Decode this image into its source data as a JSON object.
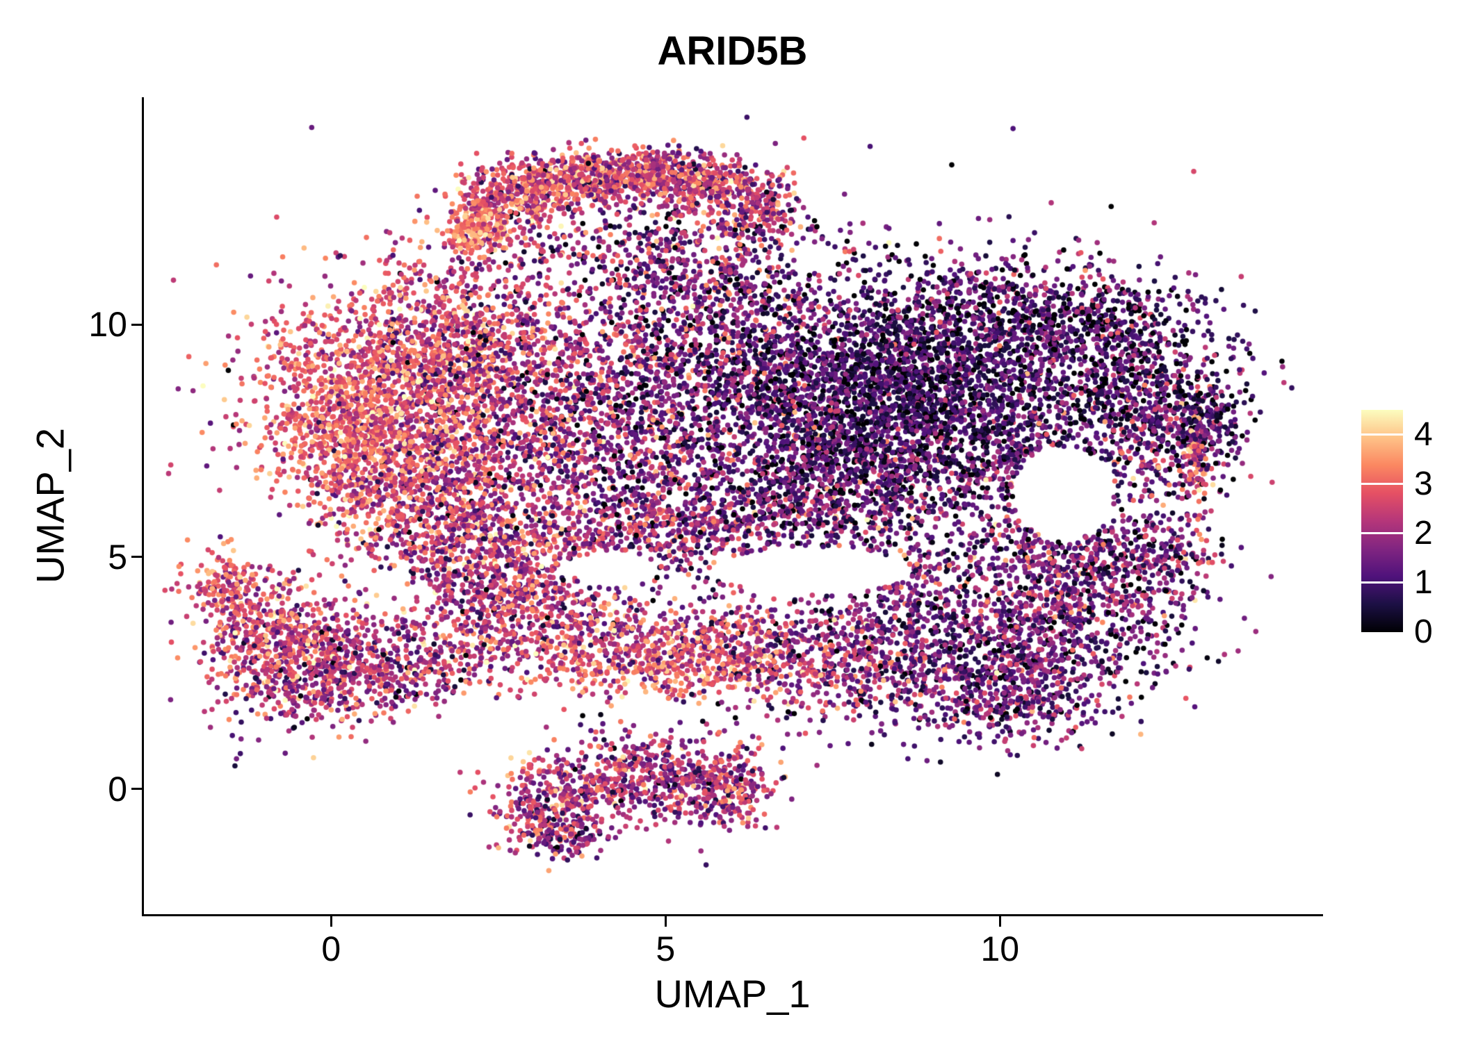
{
  "chart_data": {
    "type": "scatter",
    "title": "ARID5B",
    "xlabel": "UMAP_1",
    "ylabel": "UMAP_2",
    "xlim": [
      -2.8,
      14.8
    ],
    "ylim": [
      -2.7,
      14.9
    ],
    "xticks": [
      0,
      5,
      10
    ],
    "yticks": [
      0,
      5,
      10
    ],
    "grid": false,
    "background": "#ffffff",
    "axis_color": "#000000",
    "legend": {
      "kind": "colorbar",
      "position": "right",
      "ticks": [
        4,
        3,
        2,
        1,
        0
      ],
      "vmin": 0,
      "vmax": 4.5,
      "palette": [
        "#000004",
        "#1c1044",
        "#4f127b",
        "#812581",
        "#b5367a",
        "#e55064",
        "#fb8761",
        "#fec287",
        "#fcfdbf"
      ]
    },
    "point_radius_px": 3.8,
    "seed": 42,
    "clusters_format": "[x_center, y_center, x_sd, y_sd, n_points, expr_mean, expr_sd]",
    "clusters": [
      [
        2.15,
        12.05,
        0.22,
        0.28,
        220,
        3.3,
        0.6
      ],
      [
        2.7,
        12.75,
        0.45,
        0.35,
        300,
        2.7,
        0.8
      ],
      [
        3.6,
        13.15,
        0.55,
        0.28,
        380,
        2.7,
        0.8
      ],
      [
        4.7,
        13.25,
        0.55,
        0.25,
        380,
        2.5,
        0.8
      ],
      [
        5.7,
        13.0,
        0.45,
        0.3,
        250,
        2.3,
        0.9
      ],
      [
        6.4,
        12.55,
        0.3,
        0.35,
        150,
        2.2,
        0.9
      ],
      [
        4.3,
        11.6,
        1.3,
        0.75,
        420,
        1.9,
        1.0
      ],
      [
        6.0,
        11.2,
        0.9,
        0.8,
        300,
        1.5,
        1.0
      ],
      [
        0.75,
        8.6,
        1.05,
        1.15,
        1100,
        2.8,
        0.75
      ],
      [
        0.25,
        7.5,
        0.6,
        0.75,
        450,
        3.1,
        0.65
      ],
      [
        1.8,
        9.6,
        0.95,
        0.85,
        650,
        2.4,
        0.85
      ],
      [
        1.6,
        6.9,
        0.85,
        0.8,
        480,
        2.4,
        0.85
      ],
      [
        0.9,
        5.9,
        0.6,
        0.5,
        220,
        2.2,
        0.9
      ],
      [
        3.2,
        8.2,
        1.15,
        1.35,
        850,
        2.0,
        0.9
      ],
      [
        5.0,
        7.6,
        1.25,
        1.45,
        1000,
        1.6,
        0.95
      ],
      [
        5.8,
        9.8,
        1.0,
        0.8,
        450,
        1.3,
        0.95
      ],
      [
        7.8,
        8.4,
        1.25,
        1.05,
        1600,
        0.85,
        0.7
      ],
      [
        9.2,
        8.9,
        1.0,
        0.95,
        800,
        0.8,
        0.7
      ],
      [
        8.5,
        6.9,
        1.15,
        0.75,
        650,
        1.1,
        0.8
      ],
      [
        7.0,
        6.0,
        0.9,
        0.55,
        350,
        1.4,
        0.9
      ],
      [
        9.9,
        10.4,
        1.2,
        0.65,
        500,
        1.0,
        0.85
      ],
      [
        11.4,
        10.0,
        0.85,
        0.55,
        350,
        0.9,
        0.85
      ],
      [
        11.8,
        8.6,
        0.95,
        0.85,
        650,
        1.1,
        0.9
      ],
      [
        12.5,
        7.4,
        0.45,
        0.75,
        300,
        1.4,
        1.0
      ],
      [
        11.2,
        5.1,
        0.85,
        0.55,
        320,
        1.5,
        0.9
      ],
      [
        12.95,
        7.1,
        0.12,
        0.55,
        100,
        2.9,
        0.8
      ],
      [
        10.4,
        6.9,
        0.45,
        0.8,
        250,
        1.2,
        0.9
      ],
      [
        3.0,
        5.6,
        1.1,
        0.55,
        420,
        2.2,
        0.9
      ],
      [
        5.4,
        5.6,
        0.95,
        0.5,
        280,
        1.8,
        0.9
      ],
      [
        2.75,
        4.45,
        0.5,
        0.45,
        230,
        2.3,
        0.8
      ],
      [
        2.5,
        3.55,
        0.8,
        0.55,
        320,
        2.3,
        0.9
      ],
      [
        4.6,
        3.3,
        1.1,
        0.45,
        380,
        2.4,
        0.85
      ],
      [
        5.0,
        2.55,
        1.1,
        0.33,
        320,
        3.0,
        0.75
      ],
      [
        6.4,
        2.95,
        0.75,
        0.5,
        280,
        2.2,
        0.9
      ],
      [
        7.8,
        2.6,
        0.8,
        0.65,
        330,
        1.8,
        0.9
      ],
      [
        9.6,
        3.0,
        1.05,
        0.85,
        750,
        1.3,
        0.8
      ],
      [
        11.2,
        3.7,
        0.85,
        0.75,
        480,
        1.3,
        0.85
      ],
      [
        10.3,
        1.9,
        0.75,
        0.5,
        280,
        1.5,
        0.9
      ],
      [
        8.6,
        4.6,
        0.55,
        0.5,
        180,
        1.4,
        0.9
      ],
      [
        12.3,
        5.0,
        0.5,
        0.55,
        200,
        1.4,
        0.9
      ],
      [
        -0.9,
        3.4,
        0.55,
        0.6,
        420,
        2.5,
        0.85
      ],
      [
        -0.3,
        2.3,
        0.65,
        0.55,
        420,
        2.2,
        0.9
      ],
      [
        -1.55,
        4.35,
        0.28,
        0.38,
        140,
        2.8,
        0.7
      ],
      [
        0.5,
        2.9,
        0.5,
        0.5,
        230,
        2.0,
        0.9
      ],
      [
        1.5,
        2.55,
        0.55,
        0.4,
        120,
        2.1,
        1.0
      ],
      [
        3.2,
        -0.35,
        0.45,
        0.5,
        280,
        2.2,
        0.9
      ],
      [
        4.3,
        0.3,
        0.55,
        0.5,
        280,
        2.0,
        0.9
      ],
      [
        5.3,
        0.2,
        0.55,
        0.45,
        270,
        2.0,
        0.9
      ],
      [
        6.0,
        -0.05,
        0.33,
        0.45,
        180,
        2.3,
        0.85
      ],
      [
        3.55,
        -1.05,
        0.35,
        0.3,
        110,
        1.9,
        0.9
      ],
      [
        6.5,
        8.0,
        3.3,
        2.4,
        500,
        1.5,
        1.1
      ],
      [
        7.0,
        4.0,
        2.5,
        0.8,
        200,
        1.8,
        1.0
      ],
      [
        1.8,
        4.9,
        0.5,
        0.5,
        150,
        2.2,
        0.9
      ],
      [
        13.1,
        7.9,
        0.25,
        0.4,
        120,
        0.9,
        0.7
      ]
    ],
    "holes_format": "[x_center, y_center, x_radius, y_radius] regions with no cells",
    "holes": [
      [
        10.95,
        6.35,
        0.75,
        1.0
      ],
      [
        7.2,
        4.7,
        1.5,
        0.5
      ],
      [
        4.2,
        4.75,
        0.7,
        0.35
      ]
    ]
  }
}
